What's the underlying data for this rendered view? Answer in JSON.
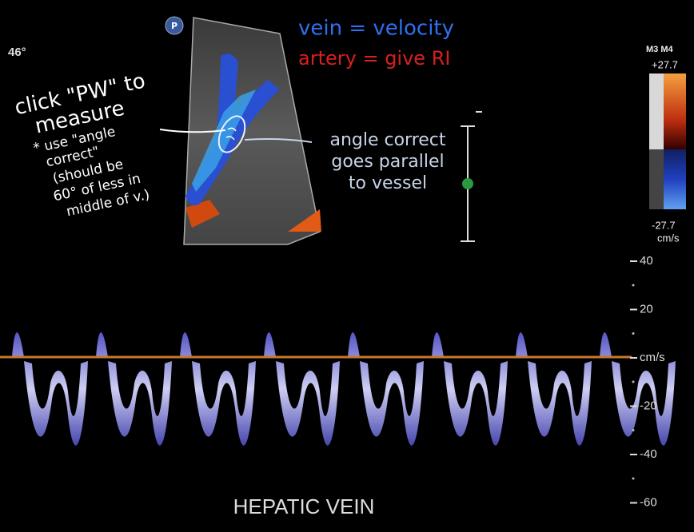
{
  "overlay": {
    "angle": "46°",
    "probe_badge": "P"
  },
  "annotations": {
    "vein_note": "vein = velocity",
    "artery_note": "artery = give RI",
    "left_note": [
      "click \"PW\" to",
      "measure",
      "* use \"angle",
      "correct\"",
      "(should be",
      "60° of less in",
      "middle of v.)"
    ],
    "right_note": [
      "angle correct",
      "goes parallel",
      "to vessel"
    ]
  },
  "color_bar": {
    "mode": "M3 M4",
    "max_label": "+27.7",
    "min_label": "-27.7",
    "unit": "cm/s"
  },
  "velocity_scale": {
    "labels": [
      "40",
      "20",
      "cm/s",
      "-20",
      "-40",
      "-60"
    ]
  },
  "caption": "HEPATIC VEIN"
}
